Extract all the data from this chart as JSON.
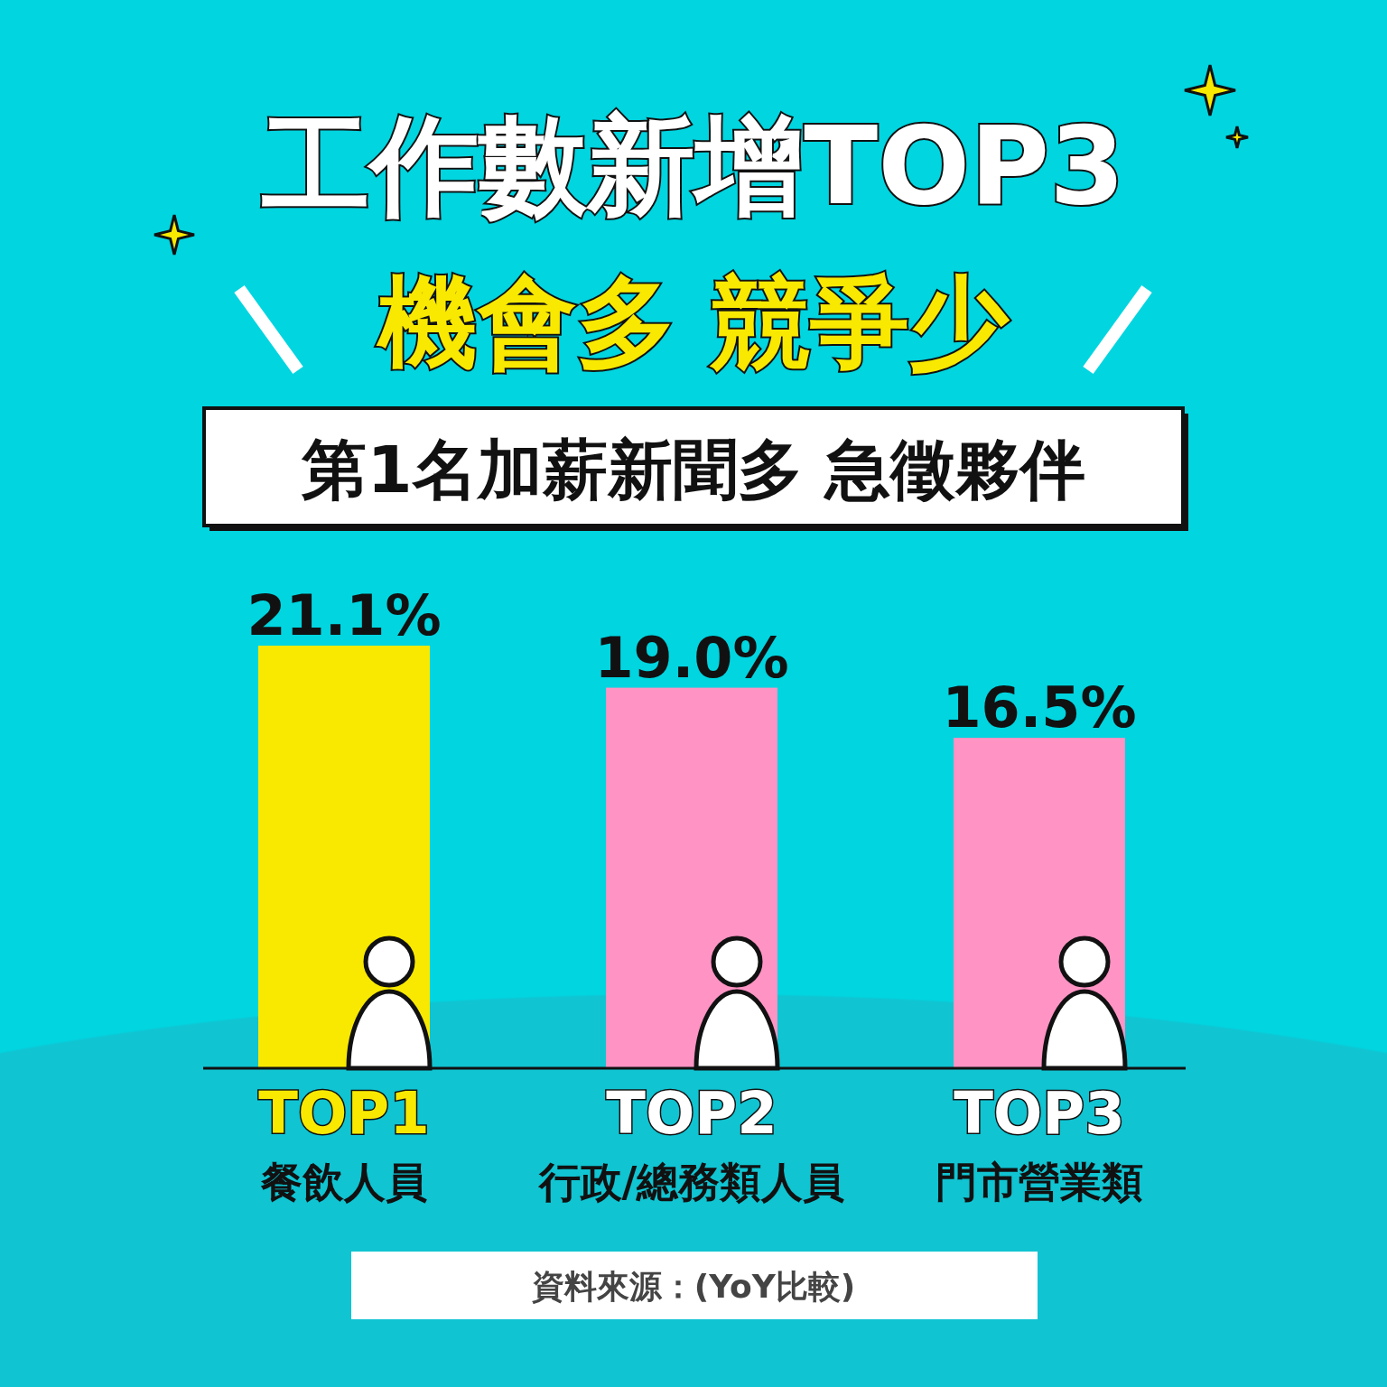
{
  "chart_data": {
    "type": "bar",
    "title": "工作數新增TOP3",
    "subtitle": "機會多 競爭少",
    "categories": [
      "餐飲人員",
      "行政/總務類人員",
      "門市營業類"
    ],
    "values": [
      21.1,
      19.0,
      16.5
    ],
    "colors": [
      "#f9e900",
      "#ff93c4",
      "#ff93c4"
    ],
    "value_labels": [
      "21.1%",
      "19.0%",
      "16.5%"
    ],
    "annotations": [
      "第1名加薪新聞多 急徵夥伴",
      "TOP1",
      "TOP2",
      "TOP3",
      "資料來源：(YoY比較)"
    ]
  }
}
